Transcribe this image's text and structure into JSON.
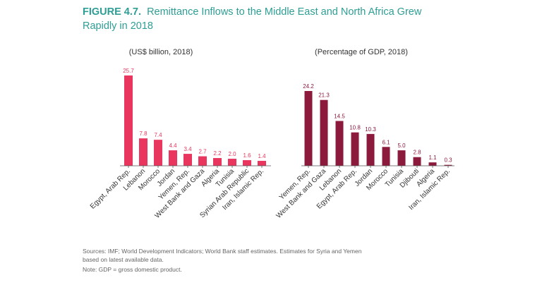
{
  "figure": {
    "label": "FIGURE 4.7.",
    "title": "Remittance Inflows to the Middle East and North Africa Grew Rapidly in 2018"
  },
  "chart_data": [
    {
      "type": "bar",
      "subtitle": "(US$ billion, 2018)",
      "color": "#e8365e",
      "categories": [
        "Egypt, Arab Rep.",
        "Lebanon",
        "Morocco",
        "Jordan",
        "Yemen, Rep.",
        "West Bank and Gaza",
        "Algeria",
        "Tunisia",
        "Syrian Arab Republic",
        "Iran, Islamic Rep."
      ],
      "values": [
        25.7,
        7.8,
        7.4,
        4.4,
        3.4,
        2.7,
        2.2,
        2.0,
        1.6,
        1.4
      ],
      "value_labels": [
        "25.7",
        "7.8",
        "7.4",
        "4.4",
        "3.4",
        "2.7",
        "2.2",
        "2.0",
        "1.6",
        "1.4"
      ]
    },
    {
      "type": "bar",
      "subtitle": "(Percentage of GDP, 2018)",
      "color": "#8c1a3c",
      "categories": [
        "Yemen, Rep.",
        "West Bank and Gaza",
        "Lebanon",
        "Egypt, Arab Rep.",
        "Jordan",
        "Morocco",
        "Tunisia",
        "Djibouti",
        "Algeria",
        "Iran, Islamic Rep."
      ],
      "values": [
        24.2,
        21.3,
        14.5,
        10.8,
        10.3,
        6.1,
        5.0,
        2.8,
        1.1,
        0.3
      ],
      "value_labels": [
        "24.2",
        "21.3",
        "14.5",
        "10.8",
        "10.3",
        "6.1",
        "5.0",
        "2.8",
        "1.1",
        "0.3"
      ]
    }
  ],
  "sources": [
    "Sources: IMF; World Development Indicators; World Bank staff estimates. Estimates for Syria and Yemen",
    "based on latest available data."
  ],
  "note": "Note: GDP = gross domestic product."
}
